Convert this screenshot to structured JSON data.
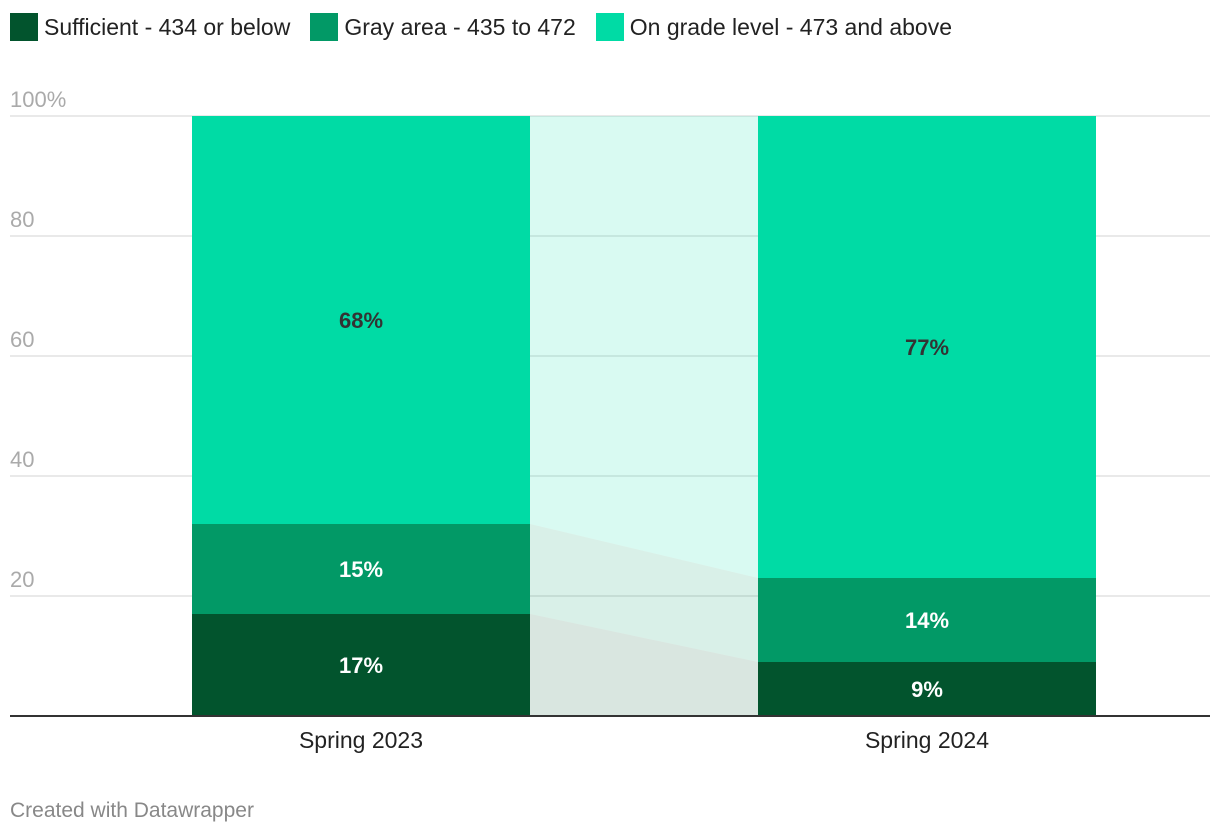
{
  "legend": [
    {
      "label": "Sufficient - 434 or below",
      "color": "#02542d"
    },
    {
      "label": "Gray area - 435 to 472",
      "color": "#029966"
    },
    {
      "label": "On grade level - 473 and above",
      "color": "#00dba5"
    }
  ],
  "chart_data": {
    "type": "bar",
    "stacked": true,
    "categories": [
      "Spring 2023",
      "Spring 2024"
    ],
    "series": [
      {
        "name": "Sufficient - 434 or below",
        "color": "#02542d",
        "values": [
          17,
          9
        ],
        "labels": [
          "17%",
          "9%"
        ]
      },
      {
        "name": "Gray area - 435 to 472",
        "color": "#029966",
        "values": [
          15,
          14
        ],
        "labels": [
          "15%",
          "14%"
        ]
      },
      {
        "name": "On grade level - 473 and above",
        "color": "#00dba5",
        "values": [
          68,
          77
        ],
        "labels": [
          "68%",
          "77%"
        ]
      }
    ],
    "yticks": [
      {
        "value": 20,
        "label": "20"
      },
      {
        "value": 40,
        "label": "40"
      },
      {
        "value": 60,
        "label": "60"
      },
      {
        "value": 80,
        "label": "80"
      },
      {
        "value": 100,
        "label": "100%"
      }
    ],
    "ylim": [
      0,
      100
    ],
    "xlabel": "",
    "ylabel": ""
  },
  "credit": "Created with Datawrapper"
}
